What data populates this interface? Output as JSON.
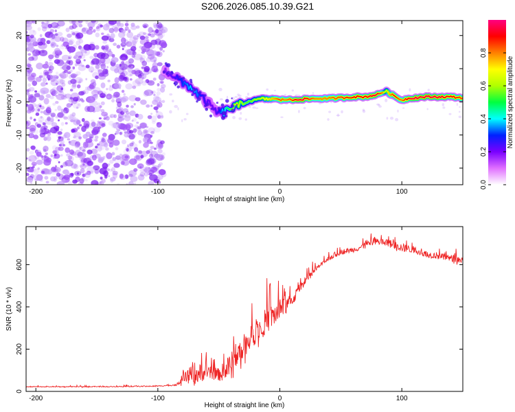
{
  "figure_title": "S206.2026.085.10.39.G21",
  "chart_data": [
    {
      "type": "heatmap",
      "title": "S206.2026.085.10.39.G21",
      "xlabel": "Height of straight line (km)",
      "ylabel": "Frequency (Hz)",
      "xlim": [
        -208,
        150
      ],
      "ylim": [
        -25,
        24.5
      ],
      "xticks": [
        -200,
        -100,
        0,
        100
      ],
      "yticks": [
        -20,
        -10,
        0,
        10,
        20
      ],
      "noise_region_x": [
        -208,
        -95
      ],
      "ridge": {
        "x": [
          -95,
          -90,
          -85,
          -80,
          -75,
          -70,
          -65,
          -60,
          -55,
          -50,
          -45,
          -40,
          -35,
          -30,
          -25,
          -20,
          -15,
          -10,
          -5,
          0,
          5,
          10,
          15,
          20,
          30,
          40,
          50,
          60,
          70,
          80,
          85,
          88,
          90,
          95,
          100,
          105,
          110,
          120,
          130,
          140,
          150
        ],
        "y": [
          9.5,
          8.5,
          7.5,
          5.5,
          5.0,
          3.5,
          1.5,
          0.0,
          -2.0,
          -3.5,
          -3.0,
          -1.8,
          -1.5,
          -0.5,
          0.2,
          0.5,
          1.0,
          0.8,
          1.0,
          0.5,
          0.8,
          0.5,
          0.8,
          0.8,
          1.0,
          1.0,
          1.2,
          1.5,
          1.5,
          2.2,
          3.0,
          3.2,
          2.5,
          1.5,
          0.5,
          1.0,
          1.2,
          1.5,
          1.5,
          1.5,
          1.2
        ],
        "amp": [
          0.15,
          0.2,
          0.25,
          0.3,
          0.35,
          0.4,
          0.3,
          0.25,
          0.2,
          0.25,
          0.4,
          0.55,
          0.65,
          0.6,
          0.55,
          0.6,
          0.65,
          0.7,
          0.75,
          0.85,
          0.8,
          0.85,
          0.95,
          0.95,
          0.8,
          0.8,
          0.85,
          0.9,
          0.9,
          0.95,
          0.8,
          0.6,
          0.75,
          0.9,
          0.8,
          0.9,
          0.95,
          0.95,
          0.95,
          0.9,
          0.85
        ]
      }
    },
    {
      "type": "line",
      "title": "",
      "xlabel": "Height of straight line (km)",
      "ylabel": "SNR (10 * v/v)",
      "xlim": [
        -208,
        150
      ],
      "ylim": [
        0,
        780
      ],
      "xticks": [
        -200,
        -100,
        0,
        100
      ],
      "yticks": [
        0,
        200,
        400,
        600
      ],
      "color": "#ee2222",
      "envelope": {
        "x": [
          -208,
          -150,
          -100,
          -85,
          -80,
          -70,
          -60,
          -50,
          -40,
          -35,
          -30,
          -20,
          -10,
          0,
          10,
          20,
          30,
          40,
          50,
          60,
          70,
          80,
          90,
          100,
          110,
          120,
          130,
          140,
          150
        ],
        "base": [
          22,
          22,
          25,
          30,
          60,
          80,
          90,
          80,
          110,
          170,
          210,
          280,
          340,
          380,
          430,
          520,
          580,
          630,
          660,
          670,
          690,
          710,
          700,
          680,
          670,
          650,
          640,
          630,
          620
        ],
        "spike": [
          8,
          8,
          10,
          12,
          80,
          220,
          120,
          120,
          300,
          240,
          200,
          230,
          250,
          200,
          120,
          80,
          50,
          50,
          50,
          50,
          60,
          70,
          80,
          80,
          70,
          60,
          60,
          70,
          70
        ]
      }
    }
  ],
  "colorbar": {
    "label": "Normalized spectral amplitude",
    "ticks": [
      "0.0",
      "0.2",
      "0.4",
      "0.6",
      "0.8"
    ],
    "stops": [
      "#ffffff",
      "#e070ff",
      "#7a00ff",
      "#0020ff",
      "#00ffff",
      "#00ff40",
      "#b0ff00",
      "#ffff00",
      "#ff8000",
      "#ff0000",
      "#ff0080"
    ]
  }
}
